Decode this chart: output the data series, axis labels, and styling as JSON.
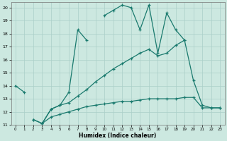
{
  "xlabel": "Humidex (Indice chaleur)",
  "bg_color": "#cce8e0",
  "grid_color": "#aacfc8",
  "line_color": "#1a7a6e",
  "xlim": [
    -0.5,
    23.5
  ],
  "ylim": [
    11,
    20.4
  ],
  "xticks": [
    0,
    1,
    2,
    3,
    4,
    5,
    6,
    7,
    8,
    9,
    10,
    11,
    12,
    13,
    14,
    15,
    16,
    17,
    18,
    19,
    20,
    21,
    22,
    23
  ],
  "yticks": [
    11,
    12,
    13,
    14,
    15,
    16,
    17,
    18,
    19,
    20
  ],
  "series0_segments": [
    {
      "x": [
        0,
        1
      ],
      "y": [
        14.0,
        13.5
      ]
    },
    {
      "x": [
        3,
        4,
        5,
        6,
        7,
        8
      ],
      "y": [
        11.1,
        12.2,
        12.5,
        13.5,
        18.3,
        17.5
      ]
    },
    {
      "x": [
        10,
        11,
        12,
        13,
        14,
        15,
        16,
        17,
        18,
        19
      ],
      "y": [
        19.4,
        19.8,
        20.2,
        20.0,
        18.3,
        20.2,
        16.5,
        19.6,
        18.3,
        17.5
      ]
    }
  ],
  "series1_x": [
    2,
    3,
    4,
    5,
    6,
    7,
    8,
    9,
    10,
    11,
    12,
    13,
    14,
    15,
    16,
    17,
    18,
    19,
    20,
    21,
    22,
    23
  ],
  "series1_y": [
    11.4,
    11.1,
    12.2,
    12.5,
    12.7,
    13.2,
    13.7,
    14.3,
    14.8,
    15.3,
    15.7,
    16.1,
    16.5,
    16.8,
    16.3,
    16.5,
    17.1,
    17.5,
    14.4,
    12.5,
    12.3,
    12.3
  ],
  "series2_x": [
    2,
    3,
    4,
    5,
    6,
    7,
    8,
    9,
    10,
    11,
    12,
    13,
    14,
    15,
    16,
    17,
    18,
    19,
    20,
    21,
    22,
    23
  ],
  "series2_y": [
    11.4,
    11.1,
    11.6,
    11.8,
    12.0,
    12.2,
    12.4,
    12.5,
    12.6,
    12.7,
    12.8,
    12.8,
    12.9,
    13.0,
    13.0,
    13.0,
    13.0,
    13.1,
    13.1,
    12.3,
    12.3,
    12.3
  ]
}
